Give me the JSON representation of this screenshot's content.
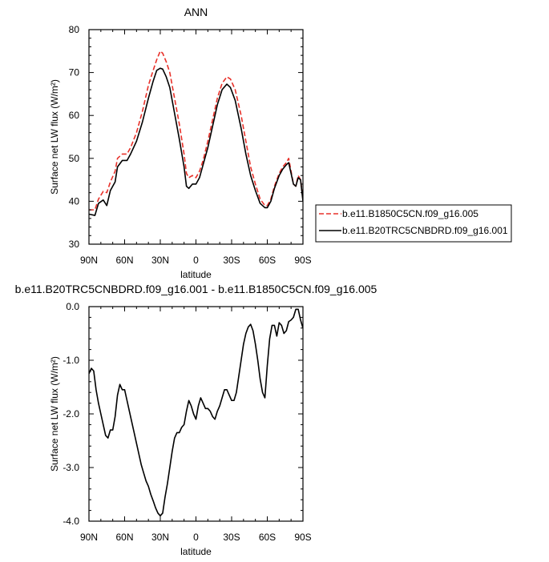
{
  "chart_data": [
    {
      "type": "line",
      "title": "ANN",
      "xlabel": "latitude",
      "ylabel": "Surface net LW flux (W/m²)",
      "xlim": [
        -90,
        90
      ],
      "ylim": [
        30,
        80
      ],
      "xticks": [
        {
          "value": -90,
          "label": "90N"
        },
        {
          "value": -60,
          "label": "60N"
        },
        {
          "value": -30,
          "label": "30N"
        },
        {
          "value": 0,
          "label": "0"
        },
        {
          "value": 30,
          "label": "30S"
        },
        {
          "value": 60,
          "label": "60S"
        },
        {
          "value": 90,
          "label": "90S"
        }
      ],
      "yticks": [
        {
          "value": 30,
          "label": "30"
        },
        {
          "value": 40,
          "label": "40"
        },
        {
          "value": 50,
          "label": "50"
        },
        {
          "value": 60,
          "label": "60"
        },
        {
          "value": 70,
          "label": "70"
        },
        {
          "value": 80,
          "label": "80"
        }
      ],
      "grid": false,
      "legend_placement": "right",
      "series": [
        {
          "name": "b.e11.B1850C5CN.f09_g16.005",
          "color": "#e8312a",
          "dash": true,
          "points": [
            [
              -90,
              38
            ],
            [
              -85,
              38
            ],
            [
              -82,
              40.5
            ],
            [
              -78,
              42.3
            ],
            [
              -75,
              42
            ],
            [
              -72,
              44.5
            ],
            [
              -68,
              47
            ],
            [
              -66,
              50
            ],
            [
              -62,
              51
            ],
            [
              -58,
              51
            ],
            [
              -55,
              52.5
            ],
            [
              -50,
              56
            ],
            [
              -45,
              61
            ],
            [
              -40,
              67
            ],
            [
              -36,
              70.5
            ],
            [
              -33,
              73
            ],
            [
              -30,
              75
            ],
            [
              -28,
              74.5
            ],
            [
              -25,
              72.5
            ],
            [
              -22,
              70
            ],
            [
              -18,
              64
            ],
            [
              -14,
              58
            ],
            [
              -10,
              51
            ],
            [
              -8,
              46.5
            ],
            [
              -6,
              45.5
            ],
            [
              -3,
              46
            ],
            [
              0,
              45.5
            ],
            [
              3,
              47
            ],
            [
              6,
              49.5
            ],
            [
              10,
              54
            ],
            [
              14,
              59
            ],
            [
              18,
              64
            ],
            [
              22,
              67.5
            ],
            [
              26,
              69
            ],
            [
              29,
              68.5
            ],
            [
              33,
              66
            ],
            [
              38,
              60
            ],
            [
              42,
              54
            ],
            [
              46,
              48
            ],
            [
              50,
              44
            ],
            [
              54,
              40.5
            ],
            [
              58,
              39
            ],
            [
              60,
              39
            ],
            [
              63,
              40.5
            ],
            [
              66,
              43.5
            ],
            [
              70,
              46.5
            ],
            [
              73,
              48
            ],
            [
              76,
              49
            ],
            [
              78,
              50
            ],
            [
              80,
              47
            ],
            [
              82,
              44
            ],
            [
              84,
              43.5
            ],
            [
              86,
              46
            ],
            [
              88,
              45
            ],
            [
              90,
              40.5
            ]
          ]
        },
        {
          "name": "b.e11.B20TRC5CNBDRD.f09_g16.001",
          "color": "#000000",
          "dash": false,
          "points": [
            [
              -90,
              37
            ],
            [
              -85,
              36.7
            ],
            [
              -82,
              39.5
            ],
            [
              -78,
              40.3
            ],
            [
              -75,
              39
            ],
            [
              -72,
              42.5
            ],
            [
              -68,
              44.5
            ],
            [
              -66,
              48
            ],
            [
              -62,
              49.5
            ],
            [
              -58,
              49.5
            ],
            [
              -55,
              51
            ],
            [
              -50,
              54
            ],
            [
              -45,
              58.5
            ],
            [
              -40,
              64
            ],
            [
              -36,
              68
            ],
            [
              -33,
              70.5
            ],
            [
              -30,
              71
            ],
            [
              -28,
              70.8
            ],
            [
              -25,
              69
            ],
            [
              -22,
              66.5
            ],
            [
              -18,
              60.5
            ],
            [
              -14,
              54.5
            ],
            [
              -10,
              48
            ],
            [
              -8,
              43.5
            ],
            [
              -6,
              43
            ],
            [
              -3,
              44
            ],
            [
              0,
              44
            ],
            [
              3,
              45.5
            ],
            [
              6,
              48.5
            ],
            [
              10,
              52.5
            ],
            [
              14,
              57.5
            ],
            [
              18,
              62.5
            ],
            [
              22,
              66
            ],
            [
              26,
              67.3
            ],
            [
              29,
              66.5
            ],
            [
              33,
              63.5
            ],
            [
              38,
              57
            ],
            [
              42,
              51
            ],
            [
              46,
              46
            ],
            [
              50,
              42.5
            ],
            [
              54,
              39.5
            ],
            [
              58,
              38.5
            ],
            [
              60,
              38.5
            ],
            [
              63,
              40
            ],
            [
              66,
              43
            ],
            [
              70,
              46
            ],
            [
              73,
              47.5
            ],
            [
              76,
              48.5
            ],
            [
              78,
              49
            ],
            [
              80,
              46.5
            ],
            [
              82,
              44
            ],
            [
              84,
              43.5
            ],
            [
              86,
              45.5
            ],
            [
              88,
              45
            ],
            [
              90,
              40
            ]
          ]
        }
      ]
    },
    {
      "type": "line",
      "title": "b.e11.B20TRC5CNBDRD.f09_g16.001 - b.e11.B1850C5CN.f09_g16.005",
      "xlabel": "latitude",
      "ylabel": "Surface net LW flux (W/m²)",
      "xlim": [
        -90,
        90
      ],
      "ylim": [
        -4.0,
        0.0
      ],
      "xticks": [
        {
          "value": -90,
          "label": "90N"
        },
        {
          "value": -60,
          "label": "60N"
        },
        {
          "value": -30,
          "label": "30N"
        },
        {
          "value": 0,
          "label": "0"
        },
        {
          "value": 30,
          "label": "30S"
        },
        {
          "value": 60,
          "label": "60S"
        },
        {
          "value": 90,
          "label": "90S"
        }
      ],
      "yticks": [
        {
          "value": -4.0,
          "label": "-4.0"
        },
        {
          "value": -3.0,
          "label": "-3.0"
        },
        {
          "value": -2.0,
          "label": "-2.0"
        },
        {
          "value": -1.0,
          "label": "-1.0"
        },
        {
          "value": 0.0,
          "label": "0.0"
        }
      ],
      "grid": false,
      "series": [
        {
          "color": "#000000",
          "dash": false,
          "points": [
            [
              -90,
              -1.25
            ],
            [
              -88,
              -1.15
            ],
            [
              -86,
              -1.2
            ],
            [
              -84,
              -1.55
            ],
            [
              -82,
              -1.8
            ],
            [
              -80,
              -2.0
            ],
            [
              -78,
              -2.2
            ],
            [
              -76,
              -2.4
            ],
            [
              -74,
              -2.45
            ],
            [
              -72,
              -2.3
            ],
            [
              -70,
              -2.3
            ],
            [
              -68,
              -2.05
            ],
            [
              -66,
              -1.65
            ],
            [
              -64,
              -1.45
            ],
            [
              -62,
              -1.55
            ],
            [
              -60,
              -1.55
            ],
            [
              -58,
              -1.75
            ],
            [
              -56,
              -1.95
            ],
            [
              -54,
              -2.15
            ],
            [
              -52,
              -2.35
            ],
            [
              -50,
              -2.55
            ],
            [
              -48,
              -2.75
            ],
            [
              -46,
              -2.95
            ],
            [
              -44,
              -3.1
            ],
            [
              -42,
              -3.25
            ],
            [
              -40,
              -3.35
            ],
            [
              -38,
              -3.5
            ],
            [
              -36,
              -3.62
            ],
            [
              -34,
              -3.75
            ],
            [
              -32,
              -3.85
            ],
            [
              -30,
              -3.9
            ],
            [
              -28,
              -3.85
            ],
            [
              -26,
              -3.55
            ],
            [
              -24,
              -3.3
            ],
            [
              -22,
              -3.0
            ],
            [
              -20,
              -2.7
            ],
            [
              -18,
              -2.45
            ],
            [
              -16,
              -2.35
            ],
            [
              -14,
              -2.35
            ],
            [
              -12,
              -2.25
            ],
            [
              -10,
              -2.2
            ],
            [
              -8,
              -1.95
            ],
            [
              -6,
              -1.75
            ],
            [
              -4,
              -1.85
            ],
            [
              -2,
              -2.0
            ],
            [
              0,
              -2.1
            ],
            [
              2,
              -1.85
            ],
            [
              4,
              -1.7
            ],
            [
              6,
              -1.8
            ],
            [
              8,
              -1.9
            ],
            [
              10,
              -1.9
            ],
            [
              12,
              -1.95
            ],
            [
              14,
              -2.05
            ],
            [
              16,
              -2.1
            ],
            [
              18,
              -1.95
            ],
            [
              20,
              -1.85
            ],
            [
              22,
              -1.7
            ],
            [
              24,
              -1.55
            ],
            [
              26,
              -1.55
            ],
            [
              28,
              -1.65
            ],
            [
              30,
              -1.75
            ],
            [
              32,
              -1.75
            ],
            [
              34,
              -1.6
            ],
            [
              36,
              -1.3
            ],
            [
              38,
              -1.0
            ],
            [
              40,
              -0.7
            ],
            [
              42,
              -0.5
            ],
            [
              44,
              -0.38
            ],
            [
              46,
              -0.33
            ],
            [
              48,
              -0.45
            ],
            [
              50,
              -0.7
            ],
            [
              52,
              -1.0
            ],
            [
              54,
              -1.35
            ],
            [
              56,
              -1.6
            ],
            [
              58,
              -1.7
            ],
            [
              60,
              -1.1
            ],
            [
              62,
              -0.6
            ],
            [
              64,
              -0.35
            ],
            [
              66,
              -0.35
            ],
            [
              68,
              -0.55
            ],
            [
              70,
              -0.3
            ],
            [
              72,
              -0.35
            ],
            [
              74,
              -0.5
            ],
            [
              76,
              -0.45
            ],
            [
              78,
              -0.28
            ],
            [
              80,
              -0.25
            ],
            [
              82,
              -0.2
            ],
            [
              84,
              -0.05
            ],
            [
              86,
              -0.05
            ],
            [
              88,
              -0.25
            ],
            [
              90,
              -0.4
            ]
          ]
        }
      ]
    }
  ]
}
